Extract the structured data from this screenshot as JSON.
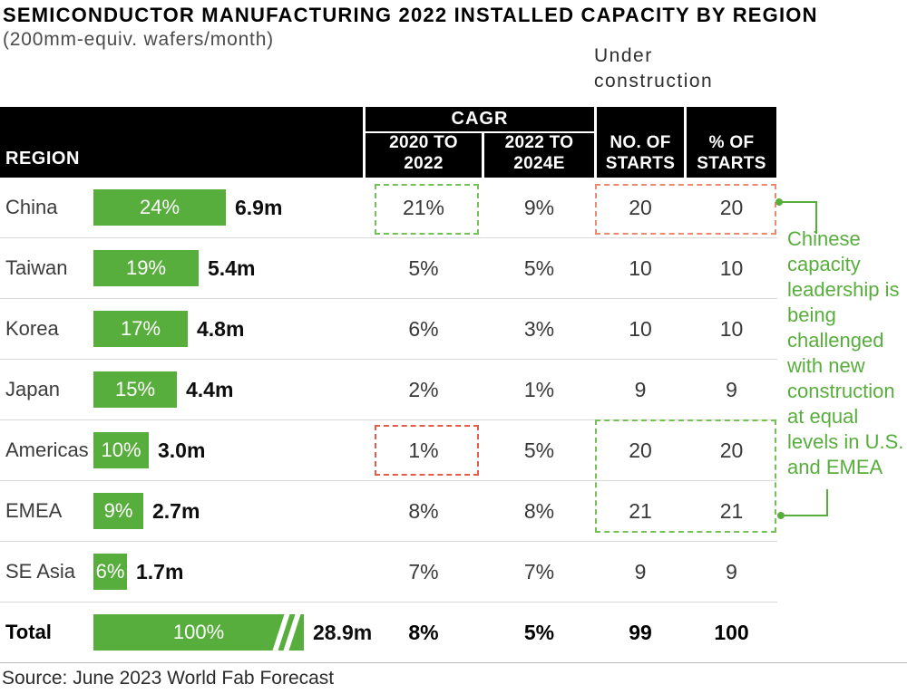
{
  "title": "SEMICONDUCTOR MANUFACTURING 2022 INSTALLED CAPACITY BY REGION",
  "subtitle": "(200mm-equiv. wafers/month)",
  "under_construction_label": "Under\nconstruction",
  "header": {
    "region": "REGION",
    "cagr": "CAGR",
    "cagr_sub1": "2020 TO\n2022",
    "cagr_sub2": "2022 TO\n2024E",
    "no_of_starts": "NO. OF\nSTARTS",
    "pct_of_starts": "% OF\nSTARTS"
  },
  "chart_data": {
    "type": "bar",
    "title": "SEMICONDUCTOR MANUFACTURING 2022 INSTALLED CAPACITY BY REGION",
    "unit": "200mm-equiv. wafers/month",
    "categories": [
      "China",
      "Taiwan",
      "Korea",
      "Japan",
      "Americas",
      "EMEA",
      "SE Asia",
      "Total"
    ],
    "series": [
      {
        "name": "Share of 2022 installed capacity (%)",
        "values": [
          24,
          19,
          17,
          15,
          10,
          9,
          6,
          100
        ]
      },
      {
        "name": "Installed capacity (wafers/month)",
        "values": [
          "6.9m",
          "5.4m",
          "4.8m",
          "4.4m",
          "3.0m",
          "2.7m",
          "1.7m",
          "28.9m"
        ]
      },
      {
        "name": "CAGR 2020 to 2022 (%)",
        "values": [
          21,
          5,
          6,
          2,
          1,
          8,
          7,
          8
        ]
      },
      {
        "name": "CAGR 2022 to 2024E (%)",
        "values": [
          9,
          5,
          3,
          1,
          5,
          8,
          7,
          5
        ]
      },
      {
        "name": "Under construction no. of starts",
        "values": [
          20,
          10,
          10,
          9,
          20,
          21,
          9,
          99
        ]
      },
      {
        "name": "Under construction % of starts",
        "values": [
          20,
          10,
          10,
          9,
          20,
          21,
          9,
          100
        ]
      }
    ],
    "rows": [
      {
        "region": "China",
        "share_pct": 24,
        "share_label": "24%",
        "capacity": "6.9m",
        "cagr_2020_2022": "21%",
        "cagr_2022_2024e": "9%",
        "starts_count": "20",
        "starts_pct": "20"
      },
      {
        "region": "Taiwan",
        "share_pct": 19,
        "share_label": "19%",
        "capacity": "5.4m",
        "cagr_2020_2022": "5%",
        "cagr_2022_2024e": "5%",
        "starts_count": "10",
        "starts_pct": "10"
      },
      {
        "region": "Korea",
        "share_pct": 17,
        "share_label": "17%",
        "capacity": "4.8m",
        "cagr_2020_2022": "6%",
        "cagr_2022_2024e": "3%",
        "starts_count": "10",
        "starts_pct": "10"
      },
      {
        "region": "Japan",
        "share_pct": 15,
        "share_label": "15%",
        "capacity": "4.4m",
        "cagr_2020_2022": "2%",
        "cagr_2022_2024e": "1%",
        "starts_count": "9",
        "starts_pct": "9"
      },
      {
        "region": "Americas",
        "share_pct": 10,
        "share_label": "10%",
        "capacity": "3.0m",
        "cagr_2020_2022": "1%",
        "cagr_2022_2024e": "5%",
        "starts_count": "20",
        "starts_pct": "20"
      },
      {
        "region": "EMEA",
        "share_pct": 9,
        "share_label": "9%",
        "capacity": "2.7m",
        "cagr_2020_2022": "8%",
        "cagr_2022_2024e": "8%",
        "starts_count": "21",
        "starts_pct": "21"
      },
      {
        "region": "SE Asia",
        "share_pct": 6,
        "share_label": "6%",
        "capacity": "1.7m",
        "cagr_2020_2022": "7%",
        "cagr_2022_2024e": "7%",
        "starts_count": "9",
        "starts_pct": "9"
      },
      {
        "region": "Total",
        "share_pct": 100,
        "share_label": "100%",
        "capacity": "28.9m",
        "cagr_2020_2022": "8%",
        "cagr_2022_2024e": "5%",
        "starts_count": "99",
        "starts_pct": "100",
        "is_total": true,
        "compressed": true
      }
    ],
    "legend_position": "none",
    "grid": false
  },
  "annotation": {
    "text": "Chinese\ncapacity\nleadership is\nbeing\nchallenged\nwith new\nconstruction\nat equal\nlevels in U.S.\nand EMEA"
  },
  "source": "Source: June 2023 World Fab Forecast",
  "colors": {
    "bar_green": "#58ae3c",
    "dashed_green": "#74c155",
    "dashed_orange": "#ea8a70",
    "dashed_red": "#e25c49",
    "header_bg": "#000000"
  }
}
